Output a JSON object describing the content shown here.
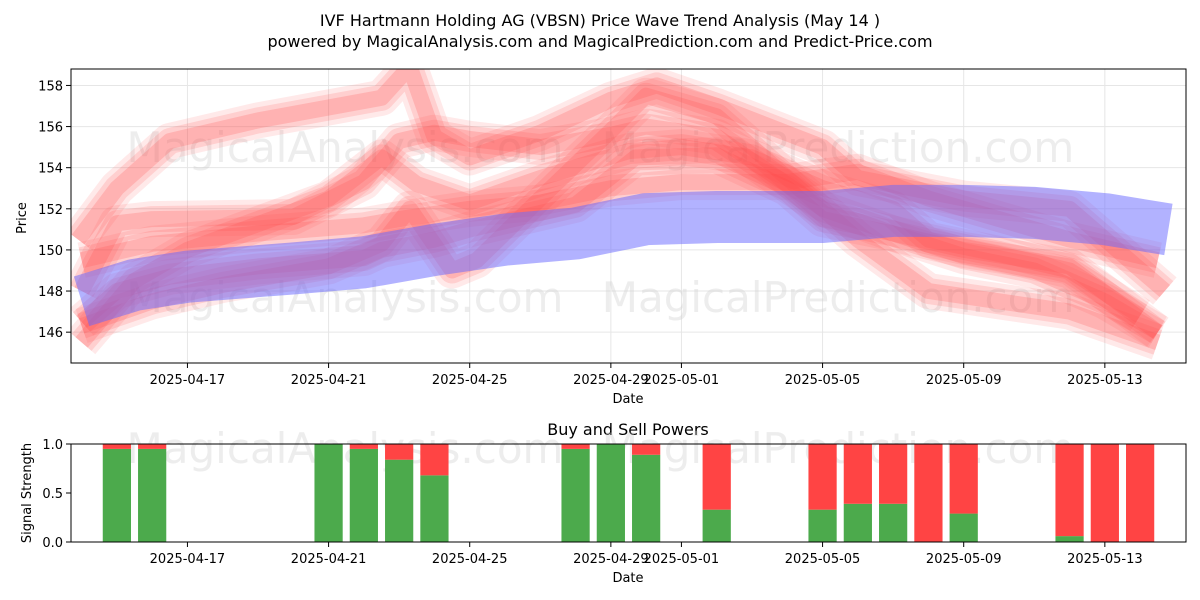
{
  "title_line1": "IVF Hartmann Holding AG (VBSN) Price Wave Trend Analysis (May 14 )",
  "title_line2": "powered by MagicalAnalysis.com and MagicalPrediction.com and Predict-Price.com",
  "watermarks": [
    "MagicalAnalysis.com",
    "MagicalPrediction.com"
  ],
  "colors": {
    "red_band": "#ff4d4d",
    "blue_band": "#6666ff",
    "buy": "#4caa4c",
    "sell": "#ff4444",
    "grid": "#e6e6e6"
  },
  "chart_data": [
    {
      "type": "area",
      "title": "",
      "xlabel": "Date",
      "ylabel": "Price",
      "ylim": [
        144.5,
        158.8
      ],
      "xlim": [
        "2025-04-13.7",
        "2025-05-15.3"
      ],
      "x_ticks": [
        "2025-04-17",
        "2025-04-21",
        "2025-04-25",
        "2025-04-29",
        "2025-05-01",
        "2025-05-05",
        "2025-05-09",
        "2025-05-13"
      ],
      "y_ticks": [
        146,
        148,
        150,
        152,
        154,
        156,
        158
      ],
      "grid": true,
      "red_series": [
        {
          "x": [
            "2025-04-14",
            "2025-04-15",
            "2025-04-16.5",
            "2025-04-19",
            "2025-04-22",
            "2025-04-22.5",
            "2025-04-24",
            "2025-04-25",
            "2025-04-28",
            "2025-04-29.7",
            "2025-05-02",
            "2025-05-04",
            "2025-05-05",
            "2025-05-07",
            "2025-05-09",
            "2025-05-11",
            "2025-05-13",
            "2025-05-14.5"
          ],
          "values": [
            146.5,
            148.0,
            148.7,
            149.2,
            149.6,
            150.0,
            150.5,
            151.0,
            152.2,
            154.5,
            154.6,
            153.0,
            151.5,
            150.8,
            149.7,
            149.0,
            147.5,
            146.0
          ]
        },
        {
          "x": [
            "2025-04-14",
            "2025-04-15",
            "2025-04-16",
            "2025-04-20",
            "2025-04-22",
            "2025-04-23",
            "2025-04-24",
            "2025-04-25",
            "2025-04-27",
            "2025-04-29",
            "2025-04-30",
            "2025-05-02",
            "2025-05-05",
            "2025-05-07",
            "2025-05-09",
            "2025-05-12",
            "2025-05-14.5"
          ],
          "values": [
            148.0,
            151.3,
            151.5,
            151.6,
            153.3,
            155.3,
            155.7,
            155.4,
            155.0,
            155.6,
            156.0,
            155.5,
            152.0,
            150.8,
            150.0,
            149.2,
            146.0
          ]
        },
        {
          "x": [
            "2025-04-14",
            "2025-04-16",
            "2025-04-18",
            "2025-04-21",
            "2025-04-22.5",
            "2025-04-23.3",
            "2025-04-24.5",
            "2025-04-25.2",
            "2025-04-27",
            "2025-04-29",
            "2025-04-30",
            "2025-05-02",
            "2025-05-04",
            "2025-05-06",
            "2025-05-08",
            "2025-05-10",
            "2025-05-12",
            "2025-05-14.5"
          ],
          "values": [
            146.3,
            147.5,
            148.3,
            149.2,
            150.3,
            152.0,
            149.0,
            149.5,
            152.5,
            155.8,
            157.5,
            156.5,
            153.5,
            150.5,
            148.0,
            147.5,
            147.0,
            145.5
          ]
        },
        {
          "x": [
            "2025-04-13.9",
            "2025-04-15",
            "2025-04-16.5",
            "2025-04-19",
            "2025-04-22.5",
            "2025-04-23.3",
            "2025-04-24",
            "2025-04-25",
            "2025-04-27",
            "2025-04-29",
            "2025-04-30.3",
            "2025-05-02",
            "2025-05-05",
            "2025-05-06",
            "2025-05-09",
            "2025-05-12",
            "2025-05-14.7"
          ],
          "values": [
            150.5,
            153.0,
            155.3,
            156.3,
            157.4,
            158.9,
            155.5,
            154.5,
            155.7,
            157.3,
            158.0,
            157.0,
            155.0,
            153.5,
            152.5,
            152.0,
            148.0
          ]
        },
        {
          "x": [
            "2025-04-14",
            "2025-04-15.5",
            "2025-04-17",
            "2025-04-21",
            "2025-04-22.5",
            "2025-04-23.5",
            "2025-04-25",
            "2025-04-27",
            "2025-04-29.5",
            "2025-05-01",
            "2025-05-03",
            "2025-05-05",
            "2025-05-07",
            "2025-05-08",
            "2025-05-10",
            "2025-05-12",
            "2025-05-14"
          ],
          "values": [
            145.5,
            148.5,
            150.0,
            152.5,
            154.5,
            153.2,
            152.3,
            153.5,
            154.8,
            155.0,
            154.5,
            153.0,
            152.0,
            150.5,
            149.8,
            149.0,
            146.8
          ]
        },
        {
          "x": [
            "2025-04-14",
            "2025-04-16",
            "2025-04-19",
            "2025-04-22",
            "2025-04-23",
            "2025-04-25",
            "2025-04-27",
            "2025-04-29",
            "2025-05-01",
            "2025-05-04",
            "2025-05-06",
            "2025-05-08",
            "2025-05-10",
            "2025-05-12",
            "2025-05-14.5"
          ],
          "values": [
            149.5,
            150.3,
            150.8,
            151.2,
            151.5,
            152.0,
            152.3,
            153.0,
            153.3,
            153.3,
            153.8,
            152.5,
            151.5,
            150.5,
            149.5
          ]
        }
      ],
      "blue_series": [
        {
          "x": [
            "2025-04-14",
            "2025-04-15.5",
            "2025-04-17",
            "2025-04-20",
            "2025-04-22",
            "2025-04-24",
            "2025-04-26",
            "2025-04-28",
            "2025-04-30",
            "2025-05-02",
            "2025-05-05",
            "2025-05-07",
            "2025-05-09",
            "2025-05-11",
            "2025-05-13",
            "2025-05-14.8"
          ],
          "values": [
            147.5,
            148.3,
            148.7,
            149.1,
            149.4,
            150.0,
            150.5,
            150.8,
            151.5,
            151.6,
            151.6,
            151.9,
            151.9,
            151.8,
            151.5,
            151.0
          ]
        }
      ]
    },
    {
      "type": "bar",
      "title": "Buy and Sell Powers",
      "xlabel": "Date",
      "ylabel": "Signal Strength",
      "ylim": [
        0,
        1
      ],
      "x_ticks": [
        "2025-04-17",
        "2025-04-21",
        "2025-04-25",
        "2025-04-29",
        "2025-05-01",
        "2025-05-05",
        "2025-05-09",
        "2025-05-13"
      ],
      "y_ticks": [
        0.0,
        0.5,
        1.0
      ],
      "bars": [
        {
          "date": "2025-04-15",
          "buy": 0.95,
          "sell": 0.05
        },
        {
          "date": "2025-04-16",
          "buy": 0.95,
          "sell": 0.05
        },
        {
          "date": "2025-04-21",
          "buy": 1.0,
          "sell": 0.0
        },
        {
          "date": "2025-04-22",
          "buy": 0.95,
          "sell": 0.05
        },
        {
          "date": "2025-04-23",
          "buy": 0.84,
          "sell": 0.16
        },
        {
          "date": "2025-04-24",
          "buy": 0.68,
          "sell": 0.32
        },
        {
          "date": "2025-04-28",
          "buy": 0.95,
          "sell": 0.05
        },
        {
          "date": "2025-04-29",
          "buy": 1.0,
          "sell": 0.0
        },
        {
          "date": "2025-04-30",
          "buy": 0.89,
          "sell": 0.11
        },
        {
          "date": "2025-05-02",
          "buy": 0.33,
          "sell": 0.67
        },
        {
          "date": "2025-05-05",
          "buy": 0.33,
          "sell": 0.67
        },
        {
          "date": "2025-05-06",
          "buy": 0.39,
          "sell": 0.61
        },
        {
          "date": "2025-05-07",
          "buy": 0.39,
          "sell": 0.61
        },
        {
          "date": "2025-05-08",
          "buy": 0.0,
          "sell": 1.0
        },
        {
          "date": "2025-05-09",
          "buy": 0.29,
          "sell": 0.71
        },
        {
          "date": "2025-05-12",
          "buy": 0.06,
          "sell": 0.94
        },
        {
          "date": "2025-05-13",
          "buy": 0.0,
          "sell": 1.0
        },
        {
          "date": "2025-05-14",
          "buy": 0.0,
          "sell": 1.0
        }
      ]
    }
  ]
}
